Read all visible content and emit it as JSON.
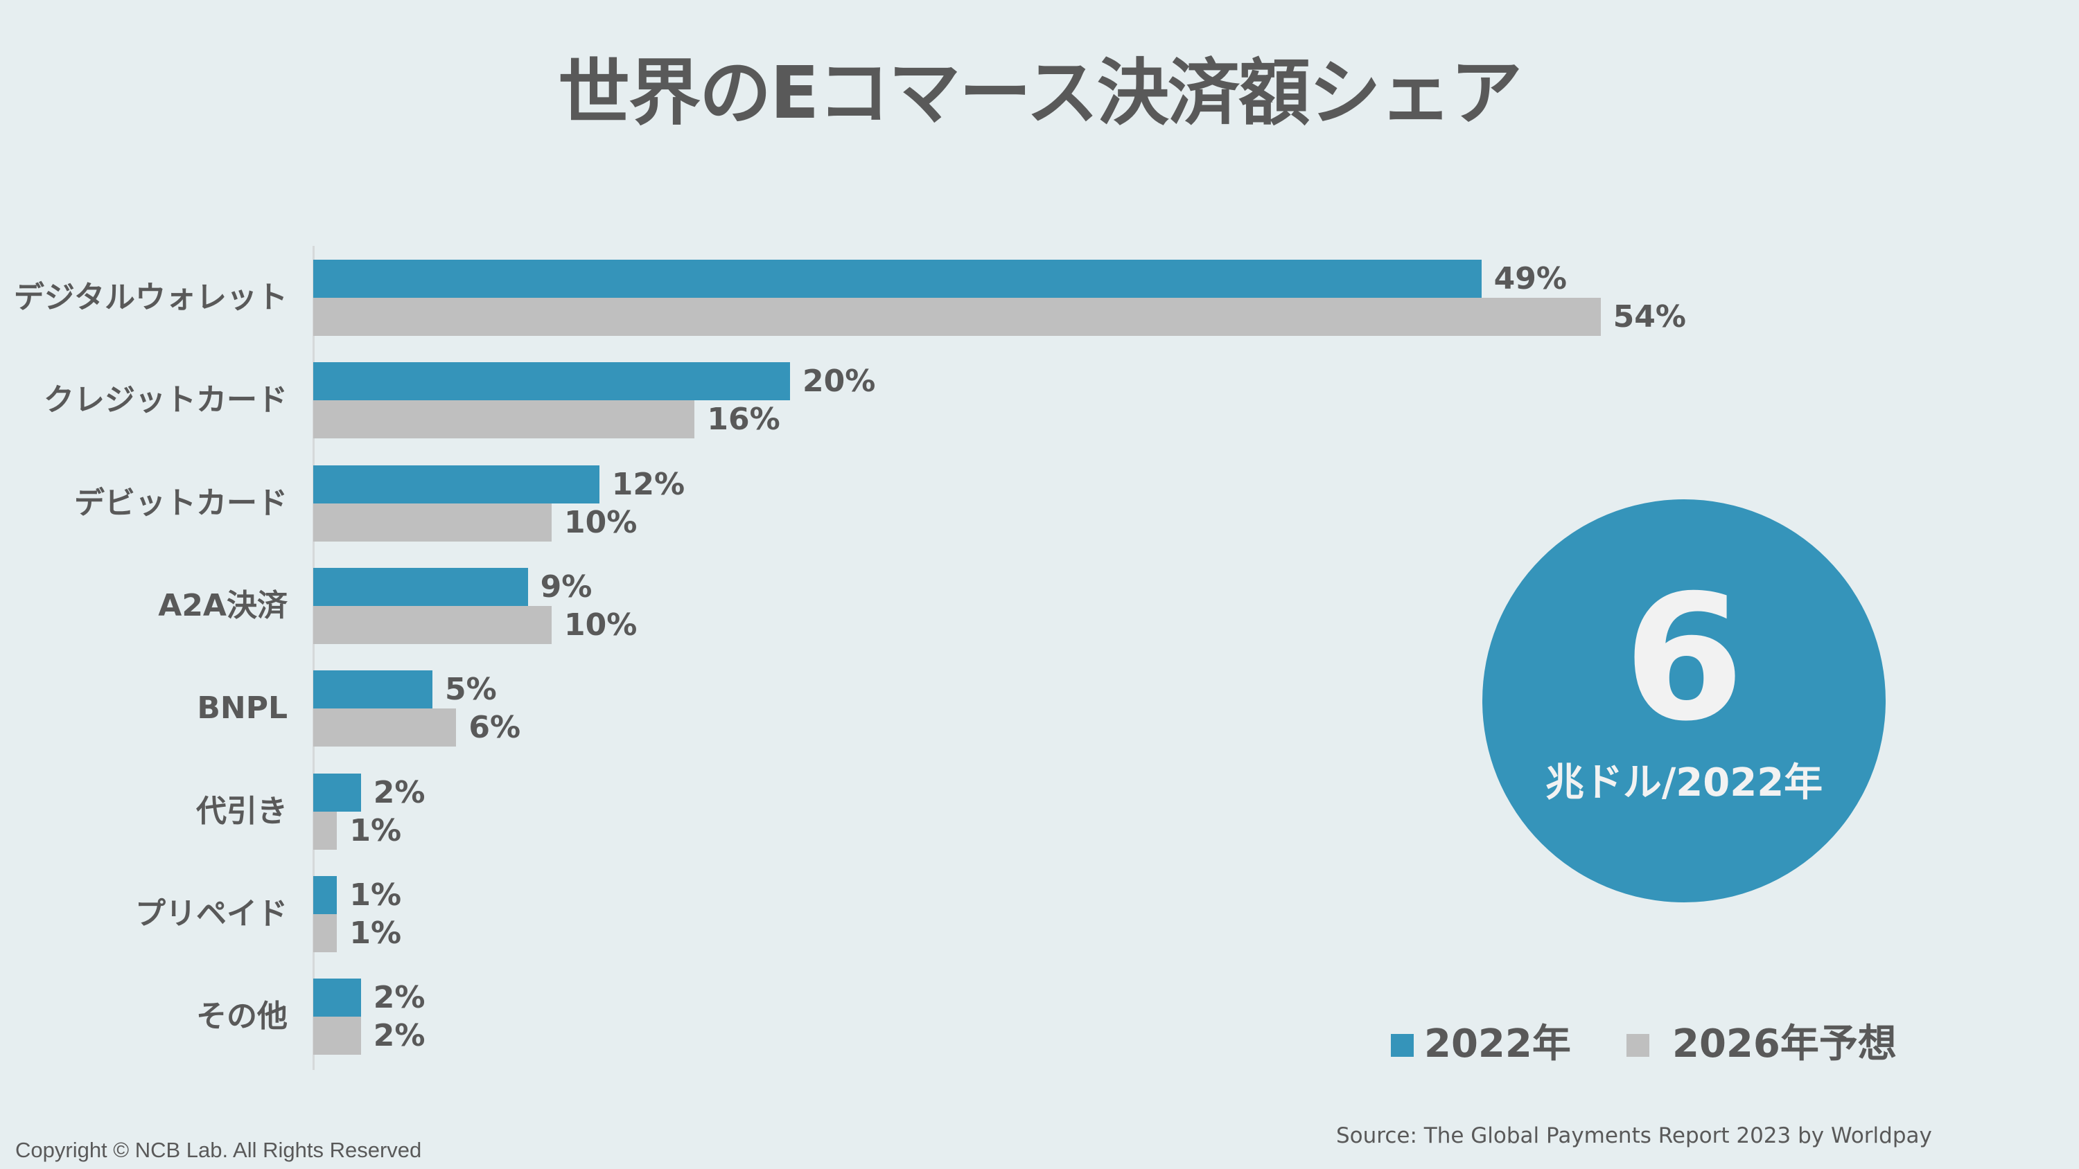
{
  "title": "世界のEコマース決済額シェア",
  "colors": {
    "background": "#E6EEF0",
    "series_2022": "#3594BA",
    "series_2026": "#BFBFBF",
    "text": "#595959",
    "circle_text": "#F2F2F2"
  },
  "highlight": {
    "value": "6",
    "unit": "兆ドル/2022年"
  },
  "legend": [
    {
      "label": "2022年",
      "color": "#3594BA"
    },
    {
      "label": "2026年予想",
      "color": "#BFBFBF"
    }
  ],
  "source": "Source: The Global Payments Report 2023 by Worldpay",
  "copyright": "Copyright © NCB Lab. All Rights Reserved",
  "chart_data": {
    "type": "bar",
    "orientation": "horizontal",
    "title": "世界のEコマース決済額シェア",
    "xlabel": "",
    "ylabel": "",
    "categories": [
      "デジタルウォレット",
      "クレジットカード",
      "デビットカード",
      "A2A決済",
      "BNPL",
      "代引き",
      "プリペイド",
      "その他"
    ],
    "series": [
      {
        "name": "2022年",
        "values": [
          49,
          20,
          12,
          9,
          5,
          2,
          1,
          2
        ],
        "labels": [
          "49%",
          "20%",
          "12%",
          "9%",
          "5%",
          "2%",
          "1%",
          "2%"
        ]
      },
      {
        "name": "2026年予想",
        "values": [
          54,
          16,
          10,
          10,
          6,
          1,
          1,
          2
        ],
        "labels": [
          "54%",
          "16%",
          "10%",
          "10%",
          "6%",
          "1%",
          "1%",
          "2%"
        ]
      }
    ],
    "unit": "%",
    "xlim": [
      0,
      60
    ],
    "grid": false,
    "legend_position": "bottom-right",
    "annotation": "6 兆ドル/2022年"
  }
}
